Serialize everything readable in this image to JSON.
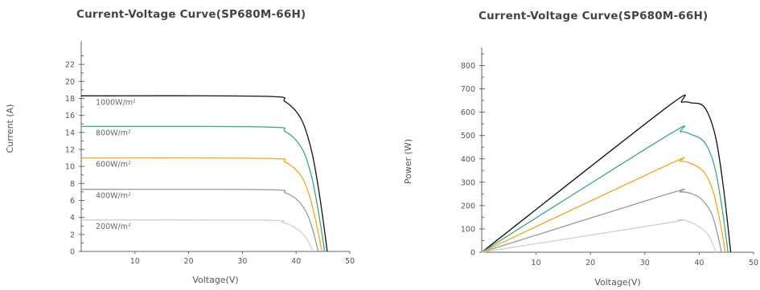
{
  "chart_data": [
    {
      "type": "line",
      "title": "Current-Voltage Curve(SP680M-66H)",
      "xlabel": "Voltage(V)",
      "ylabel": "Current (A)",
      "xlim": [
        0,
        50
      ],
      "ylim": [
        0,
        24
      ],
      "x_ticks": [
        "10",
        "20",
        "30",
        "40",
        "50"
      ],
      "y_ticks": [
        "0",
        "2",
        "4",
        "6",
        "8",
        "10",
        "12",
        "14",
        "16",
        "18",
        "20",
        "22"
      ],
      "series": [
        {
          "name": "1000W/m²",
          "color": "#111111",
          "x": [
            0,
            34,
            38,
            41,
            43,
            44.5,
            45.8
          ],
          "y": [
            18.3,
            18.25,
            17.6,
            15.5,
            11.5,
            6,
            0
          ]
        },
        {
          "name": "800W/m²",
          "color": "#3aa882",
          "x": [
            0,
            34,
            38,
            41,
            42.8,
            44.2,
            45.3
          ],
          "y": [
            14.7,
            14.65,
            14.1,
            12.2,
            9,
            4.5,
            0
          ]
        },
        {
          "name": "600W/m²",
          "color": "#f0a820",
          "x": [
            0,
            34,
            38,
            40.8,
            42.5,
            43.8,
            44.8
          ],
          "y": [
            11,
            10.95,
            10.5,
            9,
            6.5,
            3.2,
            0
          ]
        },
        {
          "name": "400W/m²",
          "color": "#9b9b9b",
          "x": [
            0,
            34,
            38,
            40.5,
            42.2,
            43.3,
            44.1
          ],
          "y": [
            7.3,
            7.28,
            6.9,
            5.9,
            4.2,
            2.1,
            0
          ]
        },
        {
          "name": "200W/m²",
          "color": "#cfcfcf",
          "x": [
            0,
            34,
            37.5,
            39.8,
            41.5,
            42.4,
            43.1
          ],
          "y": [
            3.7,
            3.68,
            3.4,
            2.8,
            1.9,
            1,
            0
          ]
        }
      ]
    },
    {
      "type": "line",
      "title": "Current-Voltage Curve(SP680M-66H)",
      "xlabel": "Voltage(V)",
      "ylabel": "Power (W)",
      "xlim": [
        0,
        50
      ],
      "ylim": [
        0,
        850
      ],
      "x_ticks": [
        "10",
        "20",
        "30",
        "40",
        "50"
      ],
      "y_ticks": [
        "0",
        "100",
        "200",
        "300",
        "400",
        "500",
        "600",
        "700",
        "800"
      ],
      "series": [
        {
          "color": "#111111",
          "x": [
            0,
            34,
            36.8,
            38.5,
            41,
            43,
            44.5,
            45.8
          ],
          "y": [
            0,
            620,
            643,
            640,
            620,
            495,
            270,
            0
          ]
        },
        {
          "color": "#3aa882",
          "x": [
            0,
            34,
            36.6,
            38.5,
            41,
            42.8,
            44.2,
            45.3
          ],
          "y": [
            0,
            498,
            516,
            505,
            470,
            370,
            190,
            0
          ]
        },
        {
          "color": "#f0a820",
          "x": [
            0,
            34,
            36.5,
            38.5,
            40.8,
            42.5,
            43.8,
            44.8
          ],
          "y": [
            0,
            372,
            390,
            380,
            345,
            265,
            135,
            0
          ]
        },
        {
          "color": "#9b9b9b",
          "x": [
            0,
            34,
            36.5,
            38.5,
            40.5,
            42.2,
            43.3,
            44.1
          ],
          "y": [
            0,
            248,
            258,
            252,
            225,
            170,
            85,
            0
          ]
        },
        {
          "color": "#cfcfcf",
          "x": [
            0,
            34,
            36.2,
            38,
            39.8,
            41.5,
            42.4,
            43.1
          ],
          "y": [
            0,
            125,
            138,
            132,
            112,
            80,
            40,
            0
          ]
        }
      ]
    }
  ]
}
